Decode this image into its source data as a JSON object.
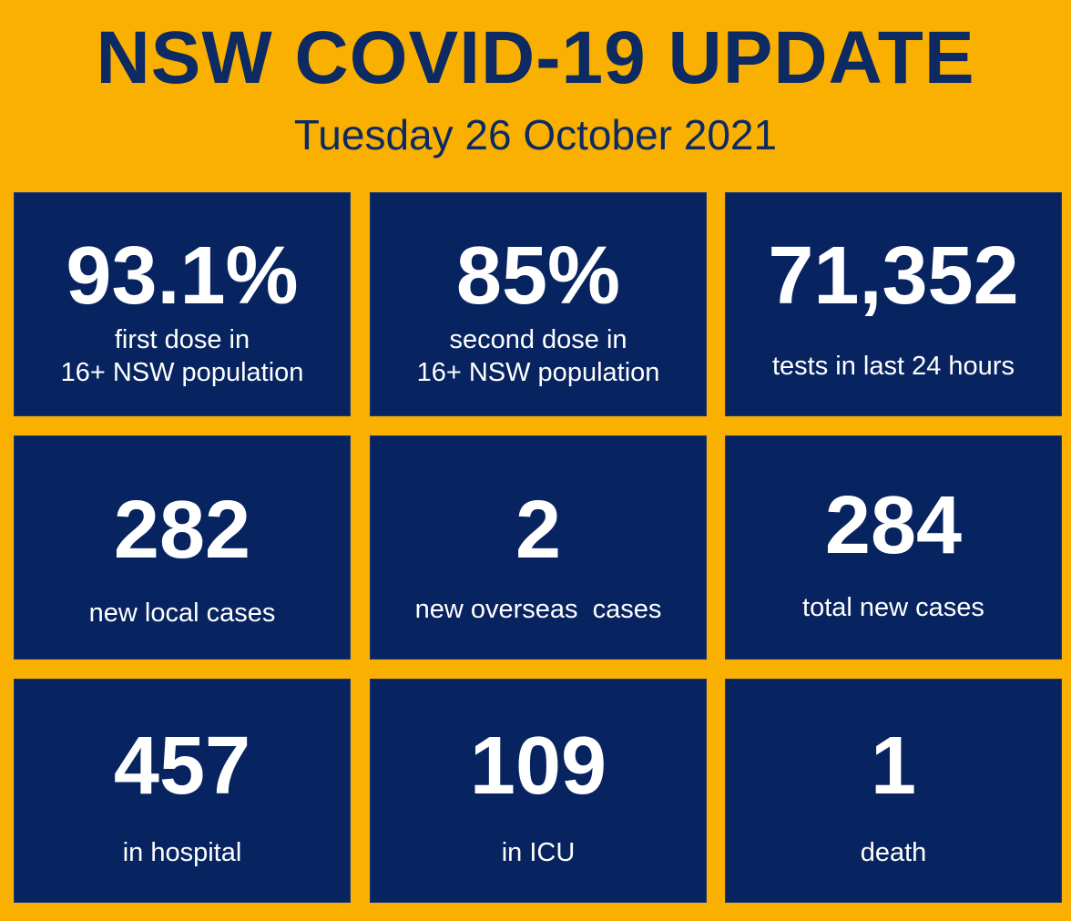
{
  "header": {
    "title": "NSW COVID-19 UPDATE",
    "date": "Tuesday 26 October 2021"
  },
  "colors": {
    "background": "#f9b000",
    "tile": "#082460",
    "title_text": "#0d2a63",
    "tile_text": "#ffffff"
  },
  "stats": {
    "first_dose": {
      "value": "93.1%",
      "label_line1": "first dose in",
      "label_line2": "16+ NSW population"
    },
    "second_dose": {
      "value": "85%",
      "label_line1": "second dose in",
      "label_line2": "16+ NSW population"
    },
    "tests": {
      "value": "71,352",
      "label": "tests in last 24 hours"
    },
    "local_cases": {
      "value": "282",
      "label": "new local cases"
    },
    "overseas_cases": {
      "value": "2",
      "label": "new overseas  cases"
    },
    "total_cases": {
      "value": "284",
      "label": "total new cases"
    },
    "hospital": {
      "value": "457",
      "label": "in hospital"
    },
    "icu": {
      "value": "109",
      "label": "in ICU"
    },
    "deaths": {
      "value": "1",
      "label": "death"
    }
  }
}
